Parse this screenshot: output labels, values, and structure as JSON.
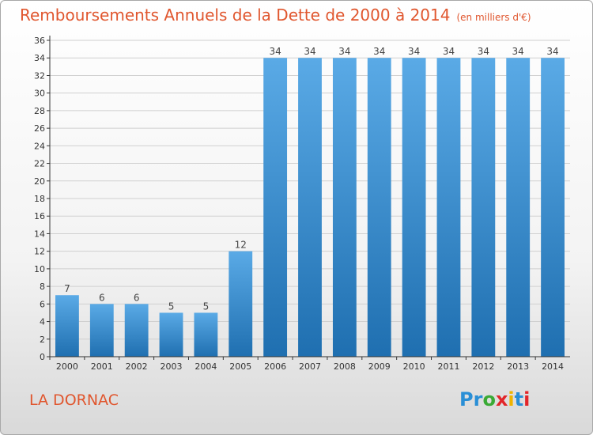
{
  "chart_data": {
    "type": "bar",
    "title": "Remboursements Annuels de la Dette de 2000 à 2014",
    "unit": "(en milliers d'€)",
    "categories": [
      "2000",
      "2001",
      "2002",
      "2003",
      "2004",
      "2005",
      "2006",
      "2007",
      "2008",
      "2009",
      "2010",
      "2011",
      "2012",
      "2013",
      "2014"
    ],
    "values": [
      7,
      6,
      6,
      5,
      5,
      12,
      34,
      34,
      34,
      34,
      34,
      34,
      34,
      34,
      34
    ],
    "ylim": [
      0,
      36
    ],
    "yticks": [
      0,
      2,
      4,
      6,
      8,
      10,
      12,
      14,
      16,
      18,
      20,
      22,
      24,
      26,
      28,
      30,
      32,
      34,
      36
    ],
    "grid": true,
    "data_labels": true
  },
  "footer": {
    "city": "LA DORNAC",
    "logo_text": "Proxiti"
  },
  "colors": {
    "title": "#e0562e",
    "bar_light": "#5aaae6",
    "bar_dark": "#1f6fb0",
    "grid": "#d0d0d0",
    "axis": "#333333",
    "logo": [
      "#2a8fd6",
      "#2a8fd6",
      "#3aaa35",
      "#e2262a",
      "#f0b400",
      "#2a8fd6",
      "#e2262a"
    ]
  }
}
